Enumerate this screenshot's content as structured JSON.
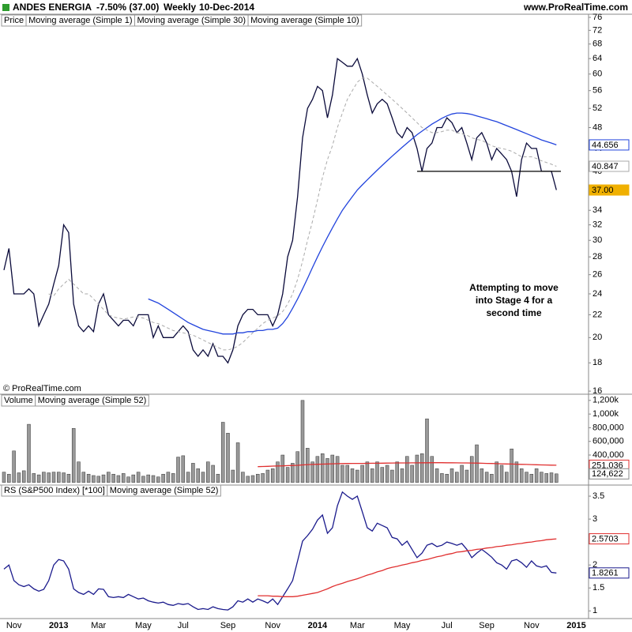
{
  "header": {
    "title": "ANDES ENERGIA",
    "change": "-7.50% (37.00)",
    "period": "Weekly",
    "date": "10-Dec-2014",
    "source": "www.ProRealTime.com",
    "copyright": "© ProRealTime.com"
  },
  "chart_data": [
    {
      "type": "line",
      "legend_title": "Price",
      "log_scale": true,
      "ylim": [
        15.9,
        77
      ],
      "yticks": [
        16,
        18,
        20,
        22,
        24,
        26,
        28,
        30,
        32,
        34,
        37,
        40,
        44,
        48,
        52,
        56,
        60,
        64,
        68,
        72,
        76
      ],
      "series": [
        {
          "name": "Moving average (Simple 1)",
          "color": "#0a0a3a",
          "values": [
            26.5,
            29,
            24,
            24,
            24,
            24.5,
            24,
            21,
            22,
            23,
            25,
            27,
            32,
            31,
            23,
            21,
            20.5,
            21,
            20.5,
            23,
            24,
            22,
            21.5,
            21,
            21.5,
            21.5,
            21,
            22,
            22,
            22,
            20,
            21,
            20,
            20,
            20,
            20.5,
            21,
            20.5,
            19,
            18.5,
            19,
            18.5,
            19.5,
            18.5,
            18.5,
            18,
            19,
            21,
            22,
            22.5,
            22.5,
            22,
            22,
            22,
            21,
            22,
            24,
            28,
            30,
            36,
            46,
            52,
            54,
            57,
            56,
            50,
            55,
            64,
            63,
            62,
            62,
            64,
            60,
            55,
            51,
            53,
            54,
            53,
            50,
            47,
            46,
            48,
            47,
            44,
            40,
            44,
            45,
            48,
            48,
            50,
            49,
            47,
            48,
            45,
            42,
            46,
            47,
            45,
            42,
            44,
            43,
            42,
            40,
            36,
            42,
            45,
            44,
            44,
            40,
            40,
            40,
            37,
            null,
            null,
            null,
            null
          ]
        },
        {
          "name": "Moving average (Simple 30)",
          "color": "#2244dd",
          "values": [
            null,
            null,
            null,
            null,
            null,
            null,
            null,
            null,
            null,
            null,
            null,
            null,
            null,
            null,
            null,
            null,
            null,
            null,
            null,
            null,
            null,
            null,
            null,
            null,
            null,
            null,
            null,
            null,
            null,
            23.5,
            23.3,
            23.1,
            22.8,
            22.5,
            22.2,
            21.9,
            21.6,
            21.3,
            21.1,
            20.9,
            20.7,
            20.6,
            20.5,
            20.4,
            20.3,
            20.3,
            20.3,
            20.4,
            20.4,
            20.5,
            20.5,
            20.6,
            20.6,
            20.7,
            20.7,
            20.8,
            21.2,
            21.8,
            22.6,
            23.5,
            24.5,
            25.6,
            26.8,
            28,
            29.2,
            30.4,
            31.6,
            32.8,
            34,
            35,
            36,
            37,
            37.8,
            38.6,
            39.4,
            40.2,
            41,
            41.8,
            42.6,
            43.4,
            44.2,
            45,
            45.8,
            46.6,
            47.3,
            48,
            48.7,
            49.3,
            49.9,
            50.4,
            50.8,
            51,
            51,
            50.9,
            50.7,
            50.4,
            50.1,
            49.8,
            49.5,
            49.2,
            48.8,
            48.4,
            48,
            47.6,
            47.2,
            46.8,
            46.4,
            46,
            45.6,
            45.3,
            45,
            44.656,
            null,
            null,
            null,
            null
          ]
        },
        {
          "name": "Moving average (Simple 10)",
          "color": "#aaaaaa",
          "dashed": true,
          "values": [
            null,
            null,
            null,
            null,
            null,
            null,
            null,
            null,
            null,
            24,
            23.8,
            24.5,
            25,
            25.5,
            25,
            24.5,
            24,
            24,
            23.5,
            23,
            22.5,
            22,
            21.8,
            21.7,
            21.6,
            21.7,
            21.8,
            21.8,
            21.7,
            21.5,
            21.3,
            21.2,
            21,
            20.8,
            20.6,
            20.5,
            20.4,
            20.3,
            20.2,
            20,
            19.8,
            19.6,
            19.4,
            19.2,
            19,
            19,
            19.1,
            19.3,
            19.6,
            20,
            20.4,
            20.8,
            21.2,
            21.5,
            21.7,
            21.9,
            22.3,
            23,
            24,
            25.5,
            27.5,
            30,
            32.5,
            35.5,
            39,
            42,
            44.5,
            48,
            51,
            54,
            56,
            58,
            59,
            59,
            58,
            57,
            56,
            55,
            54,
            53,
            52,
            51,
            50,
            49,
            48,
            47.5,
            47,
            47,
            47.2,
            47.5,
            47.5,
            47,
            46.8,
            46.5,
            46,
            45.7,
            45.5,
            45,
            44.5,
            44.2,
            44,
            43.8,
            43.5,
            43,
            42.5,
            42.5,
            42.5,
            42.2,
            41.8,
            41.5,
            41.2,
            40.847,
            null,
            null,
            null,
            null
          ]
        }
      ],
      "tags": [
        {
          "value": 44.656,
          "color": "#2244dd"
        },
        {
          "value": 40.847,
          "color": "#aaaaaa"
        },
        {
          "value": 37,
          "label": "37.00",
          "color": "#f0b000",
          "filled": true
        }
      ],
      "support_line": {
        "value": 40
      },
      "annotation": "Attempting to move into Stage 4 for a second time"
    },
    {
      "type": "bar",
      "ylim": [
        0,
        1250000
      ],
      "yticks": [
        {
          "value": 400000,
          "label": "400,000"
        },
        {
          "value": 600000,
          "label": "600,000"
        },
        {
          "value": 800000,
          "label": "800,000"
        },
        {
          "value": 1000000,
          "label": "1,000k"
        },
        {
          "value": 1200000,
          "label": "1,200k"
        }
      ],
      "series": [
        {
          "name": "Volume",
          "type": "bar",
          "color": "#999999",
          "values": [
            150000,
            120000,
            460000,
            140000,
            170000,
            850000,
            130000,
            110000,
            150000,
            140000,
            150000,
            150000,
            140000,
            120000,
            790000,
            300000,
            150000,
            120000,
            100000,
            90000,
            110000,
            150000,
            120000,
            100000,
            130000,
            80000,
            110000,
            150000,
            90000,
            110000,
            100000,
            80000,
            120000,
            150000,
            130000,
            370000,
            390000,
            150000,
            280000,
            200000,
            150000,
            300000,
            250000,
            120000,
            880000,
            720000,
            180000,
            580000,
            150000,
            90000,
            100000,
            120000,
            130000,
            180000,
            200000,
            300000,
            400000,
            220000,
            280000,
            450000,
            1200000,
            500000,
            300000,
            380000,
            420000,
            350000,
            400000,
            380000,
            250000,
            250000,
            200000,
            180000,
            250000,
            300000,
            200000,
            300000,
            220000,
            250000,
            180000,
            300000,
            200000,
            380000,
            250000,
            400000,
            420000,
            930000,
            380000,
            200000,
            130000,
            120000,
            200000,
            150000,
            250000,
            180000,
            380000,
            550000,
            200000,
            150000,
            120000,
            300000,
            250000,
            150000,
            490000,
            300000,
            200000,
            150000,
            120000,
            200000,
            150000,
            130000,
            140000,
            124622,
            null,
            null,
            null,
            null
          ]
        },
        {
          "name": "Moving average (Simple 52)",
          "type": "line",
          "color": "#e03030",
          "values": [
            null,
            null,
            null,
            null,
            null,
            null,
            null,
            null,
            null,
            null,
            null,
            null,
            null,
            null,
            null,
            null,
            null,
            null,
            null,
            null,
            null,
            null,
            null,
            null,
            null,
            null,
            null,
            null,
            null,
            null,
            null,
            null,
            null,
            null,
            null,
            null,
            null,
            null,
            null,
            null,
            null,
            null,
            null,
            null,
            null,
            null,
            null,
            null,
            null,
            null,
            null,
            230000,
            232000,
            235000,
            238000,
            240000,
            242000,
            245000,
            248000,
            250000,
            255000,
            260000,
            262000,
            265000,
            267000,
            270000,
            272000,
            274000,
            275000,
            276000,
            277000,
            278000,
            278000,
            279000,
            280000,
            280000,
            281000,
            282000,
            283000,
            284000,
            285000,
            285000,
            286000,
            286000,
            287000,
            287000,
            288000,
            288000,
            288000,
            287000,
            287000,
            286000,
            285000,
            284000,
            283000,
            282000,
            280000,
            278000,
            276000,
            274000,
            272000,
            270000,
            268000,
            266000,
            264000,
            262000,
            260000,
            258000,
            256000,
            254000,
            252000,
            251036,
            null,
            null,
            null,
            null
          ]
        }
      ],
      "tags": [
        {
          "value": 251036,
          "label": "251,036",
          "color": "#e03030"
        },
        {
          "value": 124622,
          "label": "124,622",
          "color": "#888888"
        }
      ]
    },
    {
      "type": "line",
      "ylim": [
        0.85,
        3.69
      ],
      "yticks": [
        1,
        1.5,
        2,
        2.5,
        3,
        3.5
      ],
      "categories": [
        null,
        null,
        "Nov",
        null,
        null,
        null,
        null,
        null,
        null,
        null,
        null,
        "2013",
        null,
        null,
        null,
        null,
        null,
        null,
        null,
        "Mar",
        null,
        null,
        null,
        null,
        null,
        null,
        null,
        null,
        "May",
        null,
        null,
        null,
        null,
        null,
        null,
        null,
        "Jul",
        null,
        null,
        null,
        null,
        null,
        null,
        null,
        null,
        "Sep",
        null,
        null,
        null,
        null,
        null,
        null,
        null,
        null,
        "Nov",
        null,
        null,
        null,
        null,
        null,
        null,
        null,
        null,
        "2014",
        null,
        null,
        null,
        null,
        null,
        null,
        null,
        "Mar",
        null,
        null,
        null,
        null,
        null,
        null,
        null,
        null,
        "May",
        null,
        null,
        null,
        null,
        null,
        null,
        null,
        null,
        "Jul",
        null,
        null,
        null,
        null,
        null,
        null,
        null,
        "Sep",
        null,
        null,
        null,
        null,
        null,
        null,
        null,
        null,
        "Nov",
        null,
        null,
        null,
        null,
        null,
        null,
        null,
        null,
        "2015"
      ],
      "series": [
        {
          "name": "RS (S&P500 Index) [*100]",
          "color": "#1a1a8c",
          "values": [
            1.91,
            2.0,
            1.66,
            1.57,
            1.53,
            1.57,
            1.48,
            1.43,
            1.47,
            1.66,
            2.0,
            2.12,
            2.09,
            1.91,
            1.48,
            1.4,
            1.36,
            1.43,
            1.36,
            1.48,
            1.47,
            1.31,
            1.29,
            1.31,
            1.29,
            1.36,
            1.31,
            1.26,
            1.28,
            1.22,
            1.19,
            1.17,
            1.19,
            1.14,
            1.12,
            1.16,
            1.14,
            1.16,
            1.09,
            1.03,
            1.05,
            1.03,
            1.09,
            1.05,
            1.03,
            1.02,
            1.09,
            1.22,
            1.19,
            1.26,
            1.19,
            1.26,
            1.22,
            1.17,
            1.26,
            1.14,
            1.31,
            1.48,
            1.66,
            2.09,
            2.52,
            2.64,
            2.78,
            2.98,
            3.09,
            2.69,
            2.81,
            3.29,
            3.59,
            3.5,
            3.43,
            3.5,
            3.16,
            2.81,
            2.74,
            2.91,
            2.86,
            2.81,
            2.6,
            2.57,
            2.43,
            2.52,
            2.34,
            2.16,
            2.26,
            2.43,
            2.47,
            2.4,
            2.43,
            2.5,
            2.47,
            2.43,
            2.47,
            2.34,
            2.16,
            2.26,
            2.34,
            2.26,
            2.17,
            2.05,
            2.0,
            1.91,
            2.09,
            2.12,
            2.05,
            1.95,
            2.09,
            1.98,
            1.95,
            1.98,
            1.84,
            1.8261,
            null,
            null,
            null,
            null
          ]
        },
        {
          "name": "Moving average (Simple 52)",
          "color": "#e03030",
          "values": [
            null,
            null,
            null,
            null,
            null,
            null,
            null,
            null,
            null,
            null,
            null,
            null,
            null,
            null,
            null,
            null,
            null,
            null,
            null,
            null,
            null,
            null,
            null,
            null,
            null,
            null,
            null,
            null,
            null,
            null,
            null,
            null,
            null,
            null,
            null,
            null,
            null,
            null,
            null,
            null,
            null,
            null,
            null,
            null,
            null,
            null,
            null,
            null,
            null,
            null,
            null,
            1.33,
            1.33,
            1.33,
            1.32,
            1.32,
            1.31,
            1.31,
            1.31,
            1.32,
            1.34,
            1.36,
            1.38,
            1.4,
            1.44,
            1.48,
            1.53,
            1.57,
            1.6,
            1.64,
            1.67,
            1.7,
            1.74,
            1.78,
            1.81,
            1.85,
            1.88,
            1.92,
            1.95,
            1.97,
            2.0,
            2.02,
            2.05,
            2.07,
            2.1,
            2.12,
            2.15,
            2.18,
            2.2,
            2.23,
            2.25,
            2.28,
            2.29,
            2.31,
            2.32,
            2.34,
            2.35,
            2.37,
            2.38,
            2.4,
            2.41,
            2.43,
            2.44,
            2.46,
            2.47,
            2.49,
            2.5,
            2.52,
            2.53,
            2.55,
            2.56,
            2.5703,
            null,
            null,
            null,
            null
          ]
        }
      ],
      "tags": [
        {
          "value": 2.5703,
          "color": "#e03030"
        },
        {
          "value": 1.8261,
          "color": "#1a1a8c"
        }
      ]
    }
  ]
}
